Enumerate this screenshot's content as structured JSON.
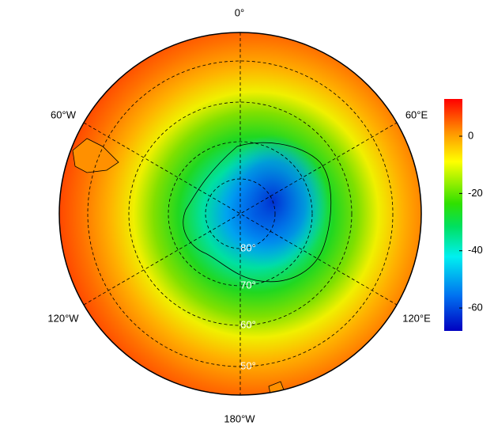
{
  "map": {
    "longitude_labels": [
      "0°",
      "60°E",
      "120°E",
      "180°W",
      "120°W",
      "60°W"
    ],
    "latitude_labels": [
      "50°",
      "60°",
      "70°",
      "80°"
    ],
    "colorbar": {
      "lim": [
        -68,
        13
      ],
      "ticks": [
        0,
        -20,
        -40,
        -60
      ]
    }
  }
}
